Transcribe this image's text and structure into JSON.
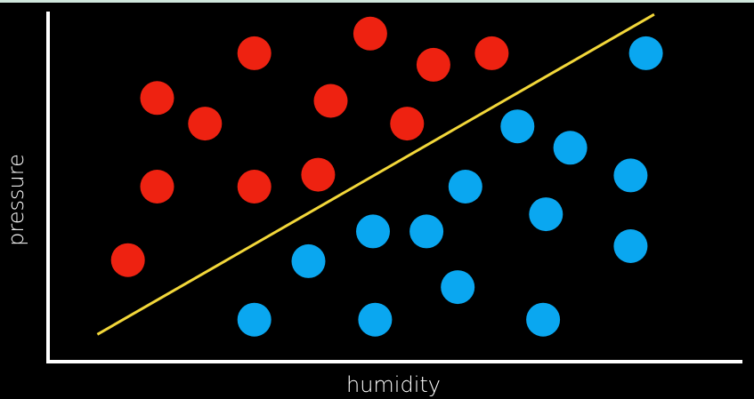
{
  "chart_data": {
    "type": "scatter",
    "xlabel": "humidity",
    "ylabel": "pressure",
    "xlim": [
      0,
      100
    ],
    "ylim": [
      0,
      100
    ],
    "grid": false,
    "series": [
      {
        "color": "#ee2211",
        "points": [
          [
            11.5,
            29.0
          ],
          [
            15.7,
            50.0
          ],
          [
            15.7,
            75.3
          ],
          [
            22.6,
            68.0
          ],
          [
            29.7,
            50.0
          ],
          [
            29.7,
            88.1
          ],
          [
            38.9,
            53.4
          ],
          [
            40.7,
            74.5
          ],
          [
            46.4,
            93.7
          ],
          [
            51.7,
            68.0
          ],
          [
            55.5,
            84.8
          ],
          [
            63.9,
            88.1
          ]
        ]
      },
      {
        "color": "#0aa7f0",
        "points": [
          [
            29.7,
            12.0
          ],
          [
            37.5,
            28.7
          ],
          [
            46.8,
            37.2
          ],
          [
            47.1,
            12.0
          ],
          [
            54.5,
            37.2
          ],
          [
            59.0,
            21.3
          ],
          [
            60.1,
            50.0
          ],
          [
            67.6,
            67.2
          ],
          [
            71.3,
            12.0
          ],
          [
            71.7,
            42.1
          ],
          [
            75.2,
            61.1
          ],
          [
            83.9,
            53.2
          ],
          [
            83.9,
            33.0
          ],
          [
            86.1,
            88.1
          ]
        ]
      }
    ],
    "separator": {
      "color": "#f2d73a",
      "from": [
        7.1,
        7.8
      ],
      "to": [
        87.3,
        99.2
      ]
    },
    "axes_color": "#ffffff"
  }
}
